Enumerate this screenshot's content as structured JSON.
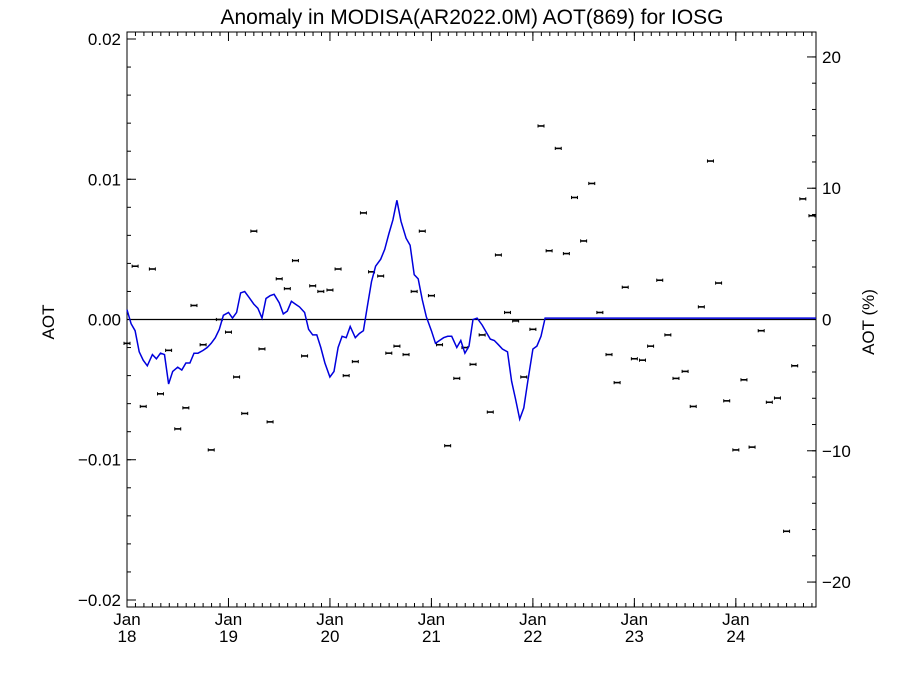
{
  "chart_data": {
    "type": "line",
    "title": "Anomaly in MODISA(AR2022.0M) AOT(869) for IOSG",
    "ylabel": "AOT",
    "ylabel_right": "AOT (%)",
    "ylim": [
      -0.0205,
      0.0205
    ],
    "y2lim": [
      -21.9,
      21.9
    ],
    "xlim": [
      2018.0,
      2024.79
    ],
    "grid": false,
    "yticks": [
      {
        "value": -0.02,
        "label": "−0.02"
      },
      {
        "value": -0.01,
        "label": "−0.01"
      },
      {
        "value": 0.0,
        "label": "0.00"
      },
      {
        "value": 0.01,
        "label": "0.01"
      },
      {
        "value": 0.02,
        "label": "0.02"
      }
    ],
    "y2ticks": [
      {
        "value": -20,
        "label": "−20"
      },
      {
        "value": -10,
        "label": "−10"
      },
      {
        "value": 0,
        "label": "0"
      },
      {
        "value": 10,
        "label": "10"
      },
      {
        "value": 20,
        "label": "20"
      }
    ],
    "xticks": [
      {
        "value": 2018.0,
        "month": "Jan",
        "year": "18"
      },
      {
        "value": 2019.0,
        "month": "Jan",
        "year": "19"
      },
      {
        "value": 2020.0,
        "month": "Jan",
        "year": "20"
      },
      {
        "value": 2021.0,
        "month": "Jan",
        "year": "21"
      },
      {
        "value": 2022.0,
        "month": "Jan",
        "year": "22"
      },
      {
        "value": 2023.0,
        "month": "Jan",
        "year": "23"
      },
      {
        "value": 2024.0,
        "month": "Jan",
        "year": "24"
      }
    ],
    "series": [
      {
        "kind": "monthly-anomaly-points",
        "color": "#000000",
        "x": [
          2018.0,
          2018.08,
          2018.16,
          2018.25,
          2018.33,
          2018.41,
          2018.5,
          2018.58,
          2018.66,
          2018.75,
          2018.83,
          2018.91,
          2019.0,
          2019.08,
          2019.16,
          2019.25,
          2019.33,
          2019.41,
          2019.5,
          2019.58,
          2019.66,
          2019.75,
          2019.83,
          2019.91,
          2020.0,
          2020.08,
          2020.16,
          2020.25,
          2020.33,
          2020.41,
          2020.5,
          2020.58,
          2020.66,
          2020.75,
          2020.83,
          2020.91,
          2021.0,
          2021.08,
          2021.16,
          2021.25,
          2021.33,
          2021.41,
          2021.5,
          2021.58,
          2021.66,
          2021.75,
          2021.83,
          2021.91,
          2022.0,
          2022.08,
          2022.16,
          2022.25,
          2022.33,
          2022.41,
          2022.5,
          2022.58,
          2022.66,
          2022.75,
          2022.83,
          2022.91,
          2023.0,
          2023.08,
          2023.16,
          2023.25,
          2023.33,
          2023.41,
          2023.5,
          2023.58,
          2023.66,
          2023.75,
          2023.83,
          2023.91,
          2024.0,
          2024.08,
          2024.16,
          2024.25,
          2024.33,
          2024.41,
          2024.5,
          2024.58,
          2024.66,
          2024.75
        ],
        "y": [
          -0.0017,
          0.0038,
          -0.0062,
          0.0036,
          -0.0053,
          -0.0022,
          -0.0078,
          -0.0063,
          0.001,
          -0.0018,
          -0.0093,
          0.0,
          -0.0009,
          -0.0041,
          -0.0067,
          0.0063,
          -0.0021,
          -0.0073,
          0.0029,
          0.0022,
          0.0042,
          -0.0026,
          0.0024,
          0.002,
          0.0021,
          0.0036,
          -0.004,
          -0.003,
          0.0076,
          0.0034,
          0.0031,
          -0.0024,
          -0.0019,
          -0.0025,
          0.002,
          0.0063,
          0.0017,
          -0.0018,
          -0.009,
          -0.0042,
          -0.002,
          -0.0032,
          -0.0011,
          -0.0066,
          0.0046,
          0.0005,
          -0.0001,
          -0.0041,
          -0.0007,
          0.0138,
          0.0049,
          0.0122,
          0.0047,
          0.0087,
          0.0056,
          0.0097,
          0.0005,
          -0.0025,
          -0.0045,
          0.0023,
          -0.0028,
          -0.0029,
          -0.0019,
          0.0028,
          -0.0011,
          -0.0042,
          -0.0037,
          -0.0062,
          0.0009,
          0.0113,
          0.0026,
          -0.0058,
          -0.0093,
          -0.0043,
          -0.0091,
          -0.0008,
          -0.0059,
          -0.0056,
          -0.0151,
          -0.0033,
          0.0086,
          0.0074
        ]
      },
      {
        "kind": "smoothed-anomaly",
        "color": "#0000dd",
        "x": [
          2018.0,
          2018.04,
          2018.08,
          2018.12,
          2018.16,
          2018.2,
          2018.25,
          2018.29,
          2018.33,
          2018.37,
          2018.41,
          2018.45,
          2018.5,
          2018.54,
          2018.58,
          2018.62,
          2018.66,
          2018.7,
          2018.75,
          2018.79,
          2018.83,
          2018.87,
          2018.91,
          2018.95,
          2019.0,
          2019.04,
          2019.08,
          2019.12,
          2019.16,
          2019.2,
          2019.25,
          2019.29,
          2019.33,
          2019.37,
          2019.41,
          2019.45,
          2019.5,
          2019.54,
          2019.58,
          2019.62,
          2019.66,
          2019.7,
          2019.75,
          2019.79,
          2019.83,
          2019.87,
          2019.91,
          2019.95,
          2020.0,
          2020.04,
          2020.08,
          2020.12,
          2020.16,
          2020.2,
          2020.25,
          2020.29,
          2020.33,
          2020.37,
          2020.41,
          2020.45,
          2020.5,
          2020.54,
          2020.58,
          2020.62,
          2020.66,
          2020.7,
          2020.75,
          2020.79,
          2020.83,
          2020.87,
          2020.91,
          2020.95,
          2021.0,
          2021.04,
          2021.08,
          2021.12,
          2021.16,
          2021.2,
          2021.25,
          2021.29,
          2021.33,
          2021.37,
          2021.41,
          2021.45,
          2021.5,
          2021.54,
          2021.58,
          2021.62,
          2021.66,
          2021.7,
          2021.75,
          2021.79,
          2021.83,
          2021.87,
          2021.91,
          2021.95,
          2022.0,
          2022.04,
          2022.08,
          2022.12,
          2022.16,
          2022.2,
          2022.25,
          2022.29,
          2022.33,
          2022.37,
          2022.41,
          2022.45,
          2022.5,
          2022.54,
          2022.58,
          2022.62,
          2022.66,
          2022.7,
          2022.75,
          2022.79,
          2022.83,
          2022.87,
          2022.91,
          2022.95,
          2023.0,
          2023.04,
          2023.08,
          2023.12,
          2023.16,
          2023.2,
          2023.25,
          2023.29,
          2023.33,
          2023.37,
          2023.41,
          2023.45,
          2023.5,
          2023.54,
          2023.58,
          2023.62,
          2023.66,
          2023.7,
          2023.75,
          2023.79,
          2023.83,
          2023.87,
          2023.91,
          2023.95,
          2024.0,
          2024.04,
          2024.08,
          2024.12,
          2024.16,
          2024.2,
          2024.25,
          2024.29,
          2024.33,
          2024.37,
          2024.41,
          2024.45,
          2024.5,
          2024.54,
          2024.58,
          2024.62,
          2024.66,
          2024.7,
          2024.75,
          2024.79
        ],
        "y": [
          0.0007,
          -0.0003,
          -0.0008,
          -0.0023,
          -0.0029,
          -0.0033,
          -0.0025,
          -0.0028,
          -0.0024,
          -0.0025,
          -0.0046,
          -0.0037,
          -0.0034,
          -0.0036,
          -0.0031,
          -0.0031,
          -0.0024,
          -0.0024,
          -0.0022,
          -0.002,
          -0.0017,
          -0.0013,
          -0.0007,
          0.0003,
          0.0005,
          0.0001,
          0.0005,
          0.0019,
          0.002,
          0.0016,
          0.0011,
          0.0008,
          0.0001,
          0.0015,
          0.0017,
          0.0018,
          0.0012,
          0.0004,
          0.0006,
          0.0013,
          0.0011,
          0.0009,
          0.0005,
          -0.0007,
          -0.0011,
          -0.0011,
          -0.002,
          -0.0031,
          -0.0041,
          -0.0037,
          -0.002,
          -0.0012,
          -0.0013,
          -0.0005,
          -0.0013,
          -0.001,
          -0.0008,
          0.001,
          0.0027,
          0.0038,
          0.0043,
          0.005,
          0.0061,
          0.0071,
          0.0085,
          0.007,
          0.0058,
          0.0053,
          0.0032,
          0.0029,
          0.0014,
          0.0002,
          -0.0008,
          -0.0017,
          -0.0015,
          -0.0013,
          -0.0012,
          -0.0012,
          -0.002,
          -0.0015,
          -0.0024,
          -0.0019,
          0.0,
          0.0001,
          -0.0004,
          -0.0009,
          -0.0014,
          -0.0015,
          -0.0018,
          -0.0021,
          -0.0023,
          -0.0044,
          -0.0057,
          -0.0071,
          -0.0063,
          -0.0044,
          -0.0021,
          -0.0019,
          -0.0012,
          0.0001,
          0.0001,
          0.0001,
          0.0001,
          0.0001,
          0.0001,
          0.0001,
          0.0001,
          0.0001,
          0.0001,
          0.0001,
          0.0001,
          0.0001,
          0.0001,
          0.0001,
          0.0001,
          0.0001,
          0.0001,
          0.0001,
          0.0001,
          0.0001,
          0.0001,
          0.0001,
          0.0001,
          0.0001,
          0.0001,
          0.0001,
          0.0001,
          0.0001,
          0.0001,
          0.0001,
          0.0001,
          0.0001,
          0.0001,
          0.0001,
          0.0001,
          0.0001,
          0.0001,
          0.0001,
          0.0001,
          0.0001,
          0.0001,
          0.0001,
          0.0001,
          0.0001,
          0.0001,
          0.0001,
          0.0001,
          0.0001,
          0.0001,
          0.0001,
          0.0001,
          0.0001,
          0.0001,
          0.0001,
          0.0001,
          0.0001,
          0.0001,
          0.0001,
          0.0001,
          0.0001,
          0.0001,
          0.0001,
          0.0001,
          0.0001
        ]
      }
    ]
  }
}
